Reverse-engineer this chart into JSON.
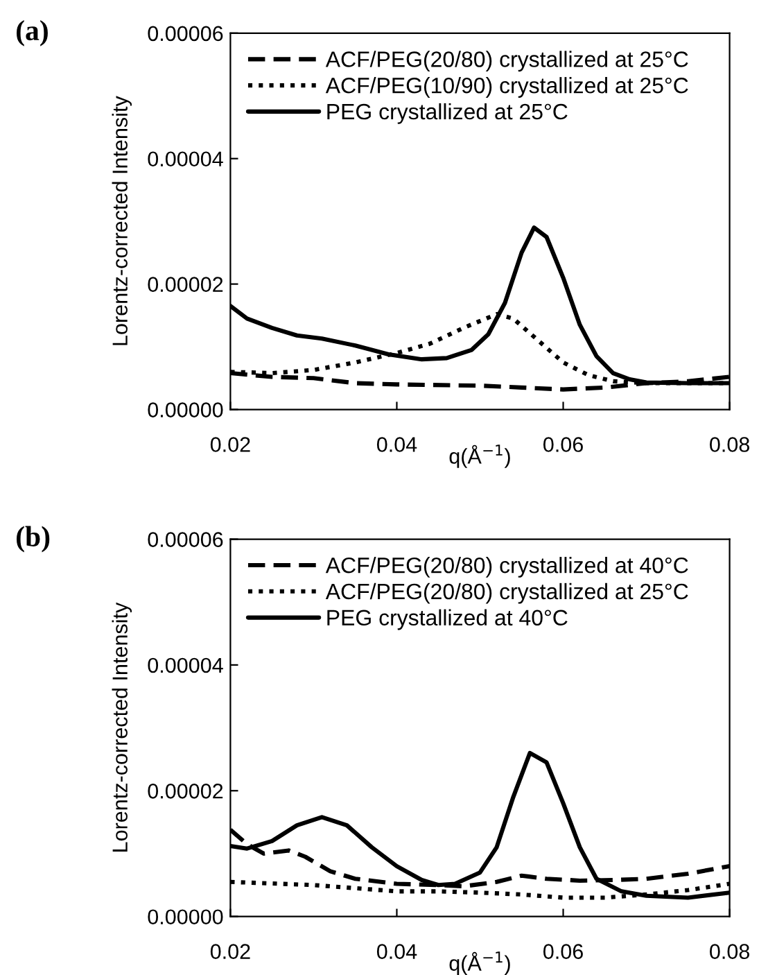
{
  "chart_data": [
    {
      "type": "line",
      "title": "(a)",
      "xlabel": "q(Å$^{−1}$)",
      "ylabel": "Lorentz-corrected Intensity",
      "xlim": [
        0.02,
        0.08
      ],
      "xticks": [
        0.02,
        0.04,
        0.06,
        0.08
      ],
      "ylim": [
        0,
        6e-05
      ],
      "yticks": [
        {
          "value": 0,
          "label": "0.00000"
        },
        {
          "value": 2e-05,
          "label": "0.00002"
        },
        {
          "value": 4e-05,
          "label": "0.00004"
        },
        {
          "value": 6e-05,
          "label": "0.00006"
        }
      ],
      "legend": "top left",
      "grid": false,
      "series": [
        {
          "name": "ACF/PEG(20/80) crystallized at 25°C",
          "color": "#000000",
          "line_style": "dashed",
          "x": [
            0.02,
            0.025,
            0.03,
            0.035,
            0.04,
            0.05,
            0.055,
            0.06,
            0.065,
            0.07,
            0.075,
            0.08
          ],
          "values": [
            5.8e-06,
            5.2e-06,
            5e-06,
            4.2e-06,
            4e-06,
            3.8e-06,
            3.5e-06,
            3.2e-06,
            3.5e-06,
            4.2e-06,
            4.5e-06,
            5.2e-06
          ]
        },
        {
          "name": "ACF/PEG(10/90) crystallized at 25°C",
          "color": "#000000",
          "line_style": "dotted",
          "x": [
            0.02,
            0.025,
            0.03,
            0.035,
            0.04,
            0.044,
            0.048,
            0.052,
            0.054,
            0.057,
            0.06,
            0.063,
            0.066,
            0.07,
            0.08
          ],
          "values": [
            6e-06,
            5.8e-06,
            6.3e-06,
            7.5e-06,
            9e-06,
            1.05e-05,
            1.3e-05,
            1.52e-05,
            1.45e-05,
            1.1e-05,
            7.5e-06,
            5.5e-06,
            4.5e-06,
            4.2e-06,
            4.2e-06
          ]
        },
        {
          "name": "PEG crystallized at 25°C",
          "color": "#000000",
          "line_style": "solid",
          "x": [
            0.02,
            0.022,
            0.025,
            0.028,
            0.031,
            0.035,
            0.039,
            0.043,
            0.046,
            0.049,
            0.051,
            0.053,
            0.055,
            0.0565,
            0.058,
            0.06,
            0.062,
            0.064,
            0.066,
            0.068,
            0.07,
            0.075,
            0.08
          ],
          "values": [
            1.65e-05,
            1.45e-05,
            1.3e-05,
            1.18e-05,
            1.13e-05,
            1.02e-05,
            8.8e-06,
            8e-06,
            8.2e-06,
            9.5e-06,
            1.2e-05,
            1.7e-05,
            2.5e-05,
            2.9e-05,
            2.75e-05,
            2.1e-05,
            1.35e-05,
            8.5e-06,
            5.8e-06,
            4.8e-06,
            4.3e-06,
            4.2e-06,
            4.2e-06
          ]
        }
      ]
    },
    {
      "type": "line",
      "title": "(b)",
      "xlabel": "q(Å$^{−1}$)",
      "ylabel": "Lorentz-corrected Intensity",
      "xlim": [
        0.02,
        0.08
      ],
      "xticks": [
        0.02,
        0.04,
        0.06,
        0.08
      ],
      "ylim": [
        0,
        6e-05
      ],
      "yticks": [
        {
          "value": 0,
          "label": "0.00000"
        },
        {
          "value": 2e-05,
          "label": "0.00002"
        },
        {
          "value": 4e-05,
          "label": "0.00004"
        },
        {
          "value": 6e-05,
          "label": "0.00006"
        }
      ],
      "legend": "top left",
      "grid": false,
      "series": [
        {
          "name": "ACF/PEG(20/80) crystallized at 40°C",
          "color": "#000000",
          "line_style": "dashed",
          "x": [
            0.02,
            0.022,
            0.024,
            0.027,
            0.029,
            0.032,
            0.035,
            0.04,
            0.045,
            0.048,
            0.052,
            0.055,
            0.058,
            0.062,
            0.066,
            0.07,
            0.075,
            0.08
          ],
          "values": [
            1.38e-05,
            1.15e-05,
            1e-05,
            1.05e-05,
            9.5e-06,
            7.2e-06,
            6e-06,
            5.2e-06,
            5e-06,
            4.8e-06,
            5.5e-06,
            6.5e-06,
            6e-06,
            5.7e-06,
            5.8e-06,
            6e-06,
            6.8e-06,
            8e-06
          ]
        },
        {
          "name": "ACF/PEG(20/80) crystallized at 25°C",
          "color": "#000000",
          "line_style": "dotted",
          "x": [
            0.02,
            0.03,
            0.035,
            0.04,
            0.045,
            0.05,
            0.055,
            0.06,
            0.065,
            0.07,
            0.075,
            0.08
          ],
          "values": [
            5.5e-06,
            5e-06,
            4.5e-06,
            4e-06,
            4e-06,
            3.8e-06,
            3.5e-06,
            3e-06,
            3e-06,
            3.5e-06,
            4.2e-06,
            5.2e-06
          ]
        },
        {
          "name": "PEG crystallized at 40°C",
          "color": "#000000",
          "line_style": "solid",
          "x": [
            0.02,
            0.022,
            0.025,
            0.028,
            0.031,
            0.034,
            0.037,
            0.04,
            0.043,
            0.045,
            0.047,
            0.05,
            0.052,
            0.054,
            0.056,
            0.058,
            0.06,
            0.062,
            0.064,
            0.067,
            0.07,
            0.075,
            0.08
          ],
          "values": [
            1.12e-05,
            1.08e-05,
            1.2e-05,
            1.45e-05,
            1.58e-05,
            1.45e-05,
            1.1e-05,
            8e-06,
            5.8e-06,
            5e-06,
            5.2e-06,
            7e-06,
            1.1e-05,
            1.9e-05,
            2.6e-05,
            2.45e-05,
            1.8e-05,
            1.1e-05,
            6e-06,
            4e-06,
            3.3e-06,
            3e-06,
            3.8e-06
          ]
        }
      ]
    }
  ]
}
